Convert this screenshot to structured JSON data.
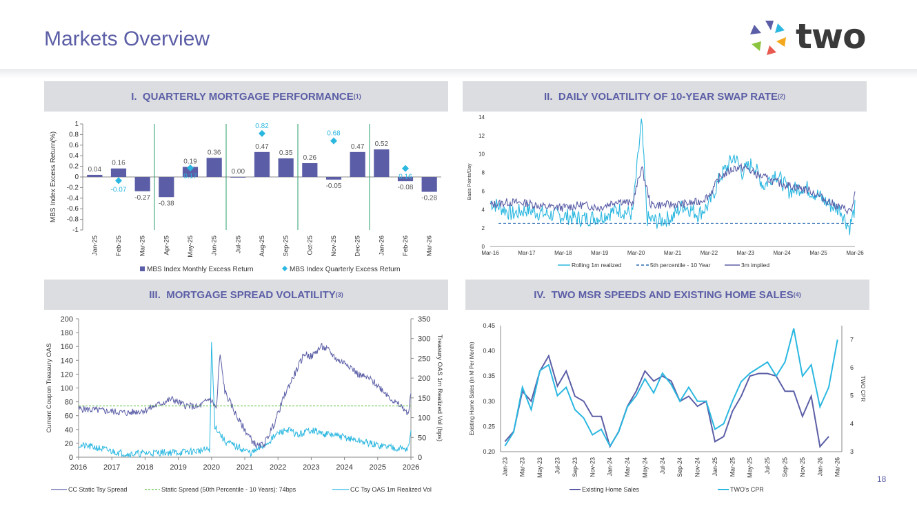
{
  "page": {
    "title": "Markets Overview",
    "logo_text": "two",
    "page_number": "18"
  },
  "colors": {
    "purple": "#5b5ea6",
    "cyan": "#2ab7e0",
    "green": "#2a9d6a",
    "dashedGreen": "#5cbf3c",
    "header_bg": "#dcdde0"
  },
  "panels": {
    "p1": {
      "num": "I.",
      "title": "QUARTERLY MORTGAGE PERFORMANCE",
      "sup": "(1)"
    },
    "p2": {
      "num": "II.",
      "title": "DAILY VOLATILITY OF 10-YEAR SWAP RATE",
      "sup": "(2)"
    },
    "p3": {
      "num": "III.",
      "title": "MORTGAGE SPREAD VOLATILITY",
      "sup": "(3)"
    },
    "p4": {
      "num": "IV.",
      "title": "TWO MSR SPEEDS AND EXISTING HOME SALES",
      "sup": "(4)"
    }
  },
  "chart_data": [
    {
      "type": "bar",
      "ylabel": "MBS Index Excess Return(%)",
      "ylim": [
        -1,
        1
      ],
      "yticks": [
        "-1",
        "-0.8",
        "-0.6",
        "-0.4",
        "-0.2",
        "0",
        "0.2",
        "0.4",
        "0.6",
        "0.8",
        "1"
      ],
      "categories": [
        "Jan-25",
        "Feb-25",
        "Mar-25",
        "Apr-25",
        "May-25",
        "Jun-25",
        "Jul-25",
        "Aug-25",
        "Sep-25",
        "Oct-25",
        "Nov-25",
        "Dec-25",
        "Jan-26",
        "Feb-26",
        "Mar-26"
      ],
      "series": [
        {
          "name": "MBS Index Monthly Excess Return",
          "values": [
            0.04,
            0.16,
            -0.27,
            -0.38,
            0.19,
            0.36,
            0.0,
            0.47,
            0.35,
            0.26,
            -0.05,
            0.47,
            0.52,
            -0.08,
            -0.28
          ],
          "labels": [
            "0.04",
            "0.16",
            "-0.27",
            "-0.38",
            "0.19",
            "0.36",
            "0.00",
            "0.47",
            "0.35",
            "0.26",
            "-0.05",
            "0.47",
            "0.52",
            "-0.08",
            "-0.28"
          ]
        },
        {
          "name": "MBS Index Quarterly Excess Return",
          "type": "scatter",
          "categories": [
            "Feb-25",
            "May-25",
            "Aug-25",
            "Nov-25",
            "Feb-26"
          ],
          "values": [
            -0.07,
            0.17,
            0.82,
            0.68,
            0.16
          ],
          "labels": [
            "-0.07",
            "0.17",
            "0.82",
            "0.68",
            "0.16"
          ]
        }
      ],
      "quarter_dividers_after": [
        "Mar-25",
        "Jun-25",
        "Sep-25",
        "Dec-25"
      ],
      "legend_position": "bottom"
    },
    {
      "type": "line",
      "ylabel": "Basis Points/Day",
      "ylim": [
        0,
        14
      ],
      "yticks": [
        "0",
        "2",
        "4",
        "6",
        "8",
        "10",
        "12",
        "14"
      ],
      "xticks": [
        "Mar-16",
        "Mar-17",
        "Mar-18",
        "Mar-19",
        "Mar-20",
        "Mar-21",
        "Mar-22",
        "Mar-23",
        "Mar-24",
        "Mar-25",
        "Mar-26"
      ],
      "x_years": [
        2016,
        2017,
        2018,
        2019,
        2020,
        2021,
        2022,
        2023,
        2024,
        2025,
        2026
      ],
      "series": [
        {
          "name": "Rolling 1m realized",
          "anchors": [
            [
              2016.0,
              4.8
            ],
            [
              2016.3,
              4.2
            ],
            [
              2016.6,
              3.5
            ],
            [
              2017.0,
              4.0
            ],
            [
              2017.5,
              3.5
            ],
            [
              2018.0,
              3.3
            ],
            [
              2018.5,
              3.0
            ],
            [
              2019.0,
              3.2
            ],
            [
              2019.5,
              4.0
            ],
            [
              2019.9,
              3.5
            ],
            [
              2020.15,
              13.6
            ],
            [
              2020.3,
              3.0
            ],
            [
              2020.6,
              2.7
            ],
            [
              2021.0,
              3.2
            ],
            [
              2021.3,
              4.5
            ],
            [
              2021.7,
              3.5
            ],
            [
              2022.0,
              4.5
            ],
            [
              2022.3,
              7.5
            ],
            [
              2022.7,
              9.8
            ],
            [
              2022.9,
              8.0
            ],
            [
              2023.2,
              9.0
            ],
            [
              2023.5,
              6.5
            ],
            [
              2023.8,
              8.0
            ],
            [
              2024.2,
              6.0
            ],
            [
              2024.6,
              6.5
            ],
            [
              2025.0,
              5.5
            ],
            [
              2025.3,
              4.5
            ],
            [
              2025.6,
              4.0
            ],
            [
              2025.85,
              2.0
            ],
            [
              2026.0,
              4.2
            ]
          ]
        },
        {
          "name": "5th percentile - 10 Year",
          "constant": 2.5,
          "dashed": true
        },
        {
          "name": "3m implied",
          "anchors": [
            [
              2016.0,
              4.5
            ],
            [
              2016.5,
              4.8
            ],
            [
              2017.0,
              4.7
            ],
            [
              2017.5,
              4.3
            ],
            [
              2018.0,
              4.2
            ],
            [
              2018.5,
              4.5
            ],
            [
              2019.0,
              4.2
            ],
            [
              2019.5,
              5.0
            ],
            [
              2019.9,
              4.6
            ],
            [
              2020.15,
              8.6
            ],
            [
              2020.4,
              4.5
            ],
            [
              2020.8,
              4.5
            ],
            [
              2021.3,
              4.6
            ],
            [
              2021.7,
              4.8
            ],
            [
              2022.0,
              5.5
            ],
            [
              2022.3,
              7.5
            ],
            [
              2022.7,
              8.5
            ],
            [
              2023.0,
              8.5
            ],
            [
              2023.3,
              7.8
            ],
            [
              2023.8,
              7.0
            ],
            [
              2024.3,
              6.5
            ],
            [
              2024.8,
              6.0
            ],
            [
              2025.2,
              5.0
            ],
            [
              2025.6,
              4.2
            ],
            [
              2025.9,
              3.8
            ],
            [
              2026.0,
              5.8
            ]
          ]
        }
      ],
      "legend_position": "bottom"
    },
    {
      "type": "line",
      "ylabel": "Current Coupon Treasury OAS",
      "y2label": "Treasury OAS 1m Realized Vol (bps)",
      "ylim": [
        0,
        200
      ],
      "y2lim": [
        0,
        350
      ],
      "yticks": [
        "0",
        "20",
        "40",
        "60",
        "80",
        "100",
        "120",
        "140",
        "160",
        "180",
        "200"
      ],
      "y2ticks": [
        "0",
        "50",
        "100",
        "150",
        "200",
        "250",
        "300",
        "350"
      ],
      "xticks": [
        "2016",
        "2017",
        "2018",
        "2019",
        "2020",
        "2021",
        "2022",
        "2023",
        "2024",
        "2025",
        "2026"
      ],
      "series": [
        {
          "name": "CC Static Tsy Spread",
          "axis": "left",
          "anchors": [
            [
              2016.0,
              70
            ],
            [
              2016.5,
              68
            ],
            [
              2017.0,
              66
            ],
            [
              2017.5,
              64
            ],
            [
              2018.0,
              68
            ],
            [
              2018.5,
              78
            ],
            [
              2018.8,
              84
            ],
            [
              2019.2,
              75
            ],
            [
              2019.6,
              72
            ],
            [
              2019.95,
              85
            ],
            [
              2020.15,
              70
            ],
            [
              2020.25,
              150
            ],
            [
              2020.4,
              95
            ],
            [
              2020.8,
              55
            ],
            [
              2021.0,
              40
            ],
            [
              2021.2,
              25
            ],
            [
              2021.4,
              15
            ],
            [
              2021.6,
              20
            ],
            [
              2021.9,
              50
            ],
            [
              2022.2,
              90
            ],
            [
              2022.5,
              120
            ],
            [
              2022.8,
              150
            ],
            [
              2023.0,
              145
            ],
            [
              2023.3,
              160
            ],
            [
              2023.5,
              155
            ],
            [
              2023.8,
              140
            ],
            [
              2024.1,
              135
            ],
            [
              2024.4,
              120
            ],
            [
              2024.8,
              112
            ],
            [
              2025.2,
              95
            ],
            [
              2025.5,
              80
            ],
            [
              2025.8,
              70
            ],
            [
              2025.9,
              60
            ],
            [
              2026.0,
              90
            ]
          ]
        },
        {
          "name": "Static Spread (50th Percentile - 10 Years): 74bps",
          "axis": "left",
          "constant": 74,
          "dashed": true
        },
        {
          "name": "CC Tsy OAS 1m Realized Vol",
          "axis": "right",
          "anchors": [
            [
              2016.0,
              30
            ],
            [
              2016.5,
              25
            ],
            [
              2017.0,
              15
            ],
            [
              2017.5,
              8
            ],
            [
              2018.0,
              10
            ],
            [
              2018.5,
              12
            ],
            [
              2019.0,
              12
            ],
            [
              2019.5,
              15
            ],
            [
              2019.95,
              20
            ],
            [
              2020.0,
              290
            ],
            [
              2020.1,
              80
            ],
            [
              2020.4,
              40
            ],
            [
              2020.8,
              25
            ],
            [
              2021.2,
              10
            ],
            [
              2021.6,
              30
            ],
            [
              2022.0,
              60
            ],
            [
              2022.3,
              70
            ],
            [
              2022.6,
              55
            ],
            [
              2023.0,
              70
            ],
            [
              2023.3,
              60
            ],
            [
              2023.7,
              55
            ],
            [
              2024.0,
              50
            ],
            [
              2024.5,
              40
            ],
            [
              2025.0,
              30
            ],
            [
              2025.5,
              25
            ],
            [
              2025.9,
              20
            ],
            [
              2026.0,
              60
            ]
          ]
        }
      ],
      "legend_position": "bottom"
    },
    {
      "type": "line",
      "ylabel": "Existing Home Sales (In M Per Month)",
      "y2label": "TWO CPR",
      "ylim": [
        0.2,
        0.45
      ],
      "y2lim": [
        3,
        7.5
      ],
      "yticks": [
        "0.20",
        "0.25",
        "0.30",
        "0.35",
        "0.40",
        "0.45"
      ],
      "y2ticks": [
        "3",
        "4",
        "5",
        "6",
        "7"
      ],
      "categories": [
        "Jan-23",
        "Feb-23",
        "Mar-23",
        "Apr-23",
        "May-23",
        "Jun-23",
        "Jul-23",
        "Aug-23",
        "Sep-23",
        "Oct-23",
        "Nov-23",
        "Dec-23",
        "Jan-24",
        "Feb-24",
        "Mar-24",
        "Apr-24",
        "May-24",
        "Jun-24",
        "Jul-24",
        "Aug-24",
        "Sep-24",
        "Oct-24",
        "Nov-24",
        "Dec-24",
        "Jan-25",
        "Feb-25",
        "Mar-25",
        "Apr-25",
        "May-25",
        "Jun-25",
        "Jul-25",
        "Aug-25",
        "Sep-25",
        "Oct-25",
        "Nov-25",
        "Dec-25",
        "Jan-26",
        "Feb-26",
        "Mar-26"
      ],
      "xticks": [
        "Jan-23",
        "Mar-23",
        "May-23",
        "Jul-23",
        "Sep-23",
        "Nov-23",
        "Jan-24",
        "Mar-24",
        "May-24",
        "Jul-24",
        "Sep-24",
        "Nov-24",
        "Jan-25",
        "Mar-25",
        "May-25",
        "Jul-25",
        "Sep-25",
        "Nov-25",
        "Jan-26",
        "Mar-26"
      ],
      "series": [
        {
          "name": "Existing Home Sales",
          "axis": "left",
          "values": [
            0.22,
            0.24,
            0.32,
            0.3,
            0.36,
            0.39,
            0.33,
            0.36,
            0.31,
            0.3,
            0.27,
            0.27,
            0.21,
            0.24,
            0.29,
            0.32,
            0.36,
            0.34,
            0.35,
            0.34,
            0.3,
            0.31,
            0.29,
            0.3,
            0.22,
            0.23,
            0.28,
            0.31,
            0.35,
            0.355,
            0.355,
            0.35,
            0.32,
            0.32,
            0.27,
            0.31,
            0.21,
            0.23,
            null
          ]
        },
        {
          "name": "TWO's CPR",
          "axis": "right",
          "values": [
            3.2,
            3.7,
            5.3,
            4.5,
            5.9,
            6.1,
            5.0,
            5.3,
            4.5,
            4.2,
            3.6,
            3.8,
            3.2,
            3.7,
            4.6,
            5.0,
            5.6,
            5.1,
            5.8,
            5.4,
            4.8,
            5.3,
            4.8,
            4.8,
            3.8,
            4.0,
            4.8,
            5.5,
            5.8,
            6.0,
            6.2,
            5.7,
            6.2,
            7.4,
            5.7,
            6.1,
            4.6,
            5.3,
            7.0
          ]
        }
      ],
      "legend_position": "bottom"
    }
  ]
}
